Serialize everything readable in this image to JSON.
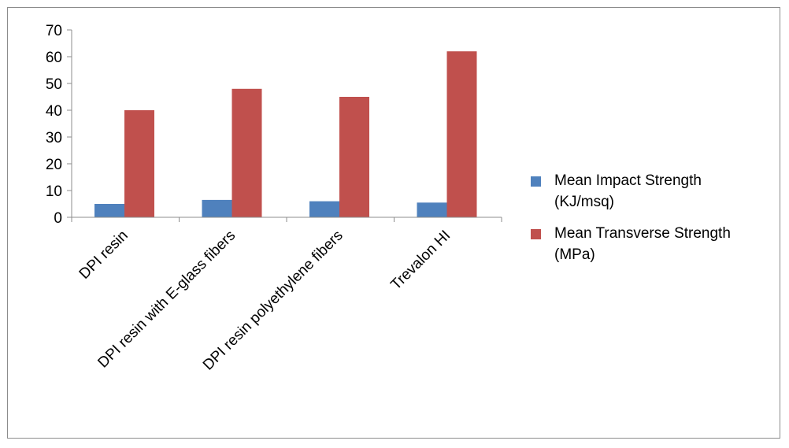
{
  "chart_data": {
    "type": "bar",
    "categories": [
      "DPI resin",
      "DPI resin with E-glass fibers",
      "DPI resin polyethylene fibers",
      "Trevalon HI"
    ],
    "series": [
      {
        "name": "Mean Impact Strength (KJ/msq)",
        "values": [
          5,
          6.5,
          6,
          5.5
        ],
        "color": "#4f81bd"
      },
      {
        "name": "Mean Transverse Strength (MPa)",
        "values": [
          40,
          48,
          45,
          62
        ],
        "color": "#c0504d"
      }
    ],
    "ylim": [
      0,
      70
    ],
    "yticks": [
      0,
      10,
      20,
      30,
      40,
      50,
      60,
      70
    ],
    "grid": false,
    "legend_position": "right"
  },
  "legend": {
    "items": [
      {
        "line1": "Mean Impact  Strength",
        "line2": "(KJ/msq)",
        "color": "#4f81bd"
      },
      {
        "line1": "Mean Transverse Strength",
        "line2": "(MPa)",
        "color": "#c0504d"
      }
    ]
  }
}
